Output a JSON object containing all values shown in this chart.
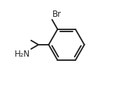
{
  "background_color": "#ffffff",
  "line_color": "#222222",
  "line_width": 1.4,
  "text_color": "#222222",
  "font_size": 8.5,
  "bond_color": "#222222",
  "figsize": [
    1.66,
    1.23
  ],
  "dpi": 100
}
